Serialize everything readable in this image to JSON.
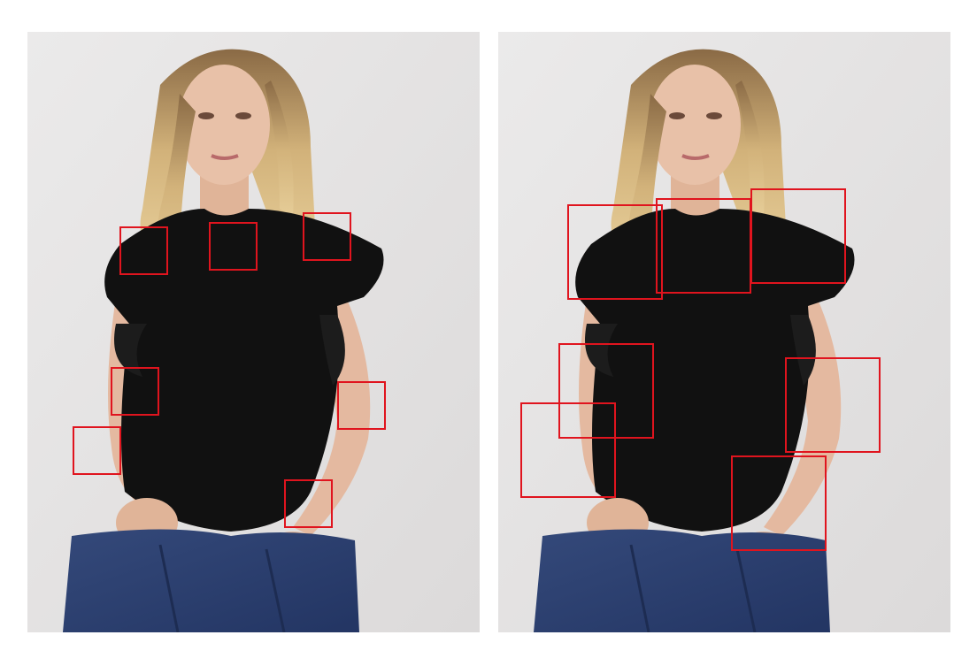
{
  "figure": {
    "panels": [
      {
        "id": "left",
        "photo": "woman-black-top-jeans-photo",
        "box_color": "#e0141e",
        "box_count": 7,
        "box_style": "small"
      },
      {
        "id": "right",
        "photo": "woman-black-top-jeans-photo",
        "box_color": "#e0141e",
        "box_count": 7,
        "box_style": "large"
      }
    ],
    "colors": {
      "background": "#e8e6e6",
      "top": "#111111",
      "skin": "#e4b9a0",
      "hair": "#c9a56b",
      "jeans": "#2c3f6b",
      "box": "#e0141e"
    }
  }
}
